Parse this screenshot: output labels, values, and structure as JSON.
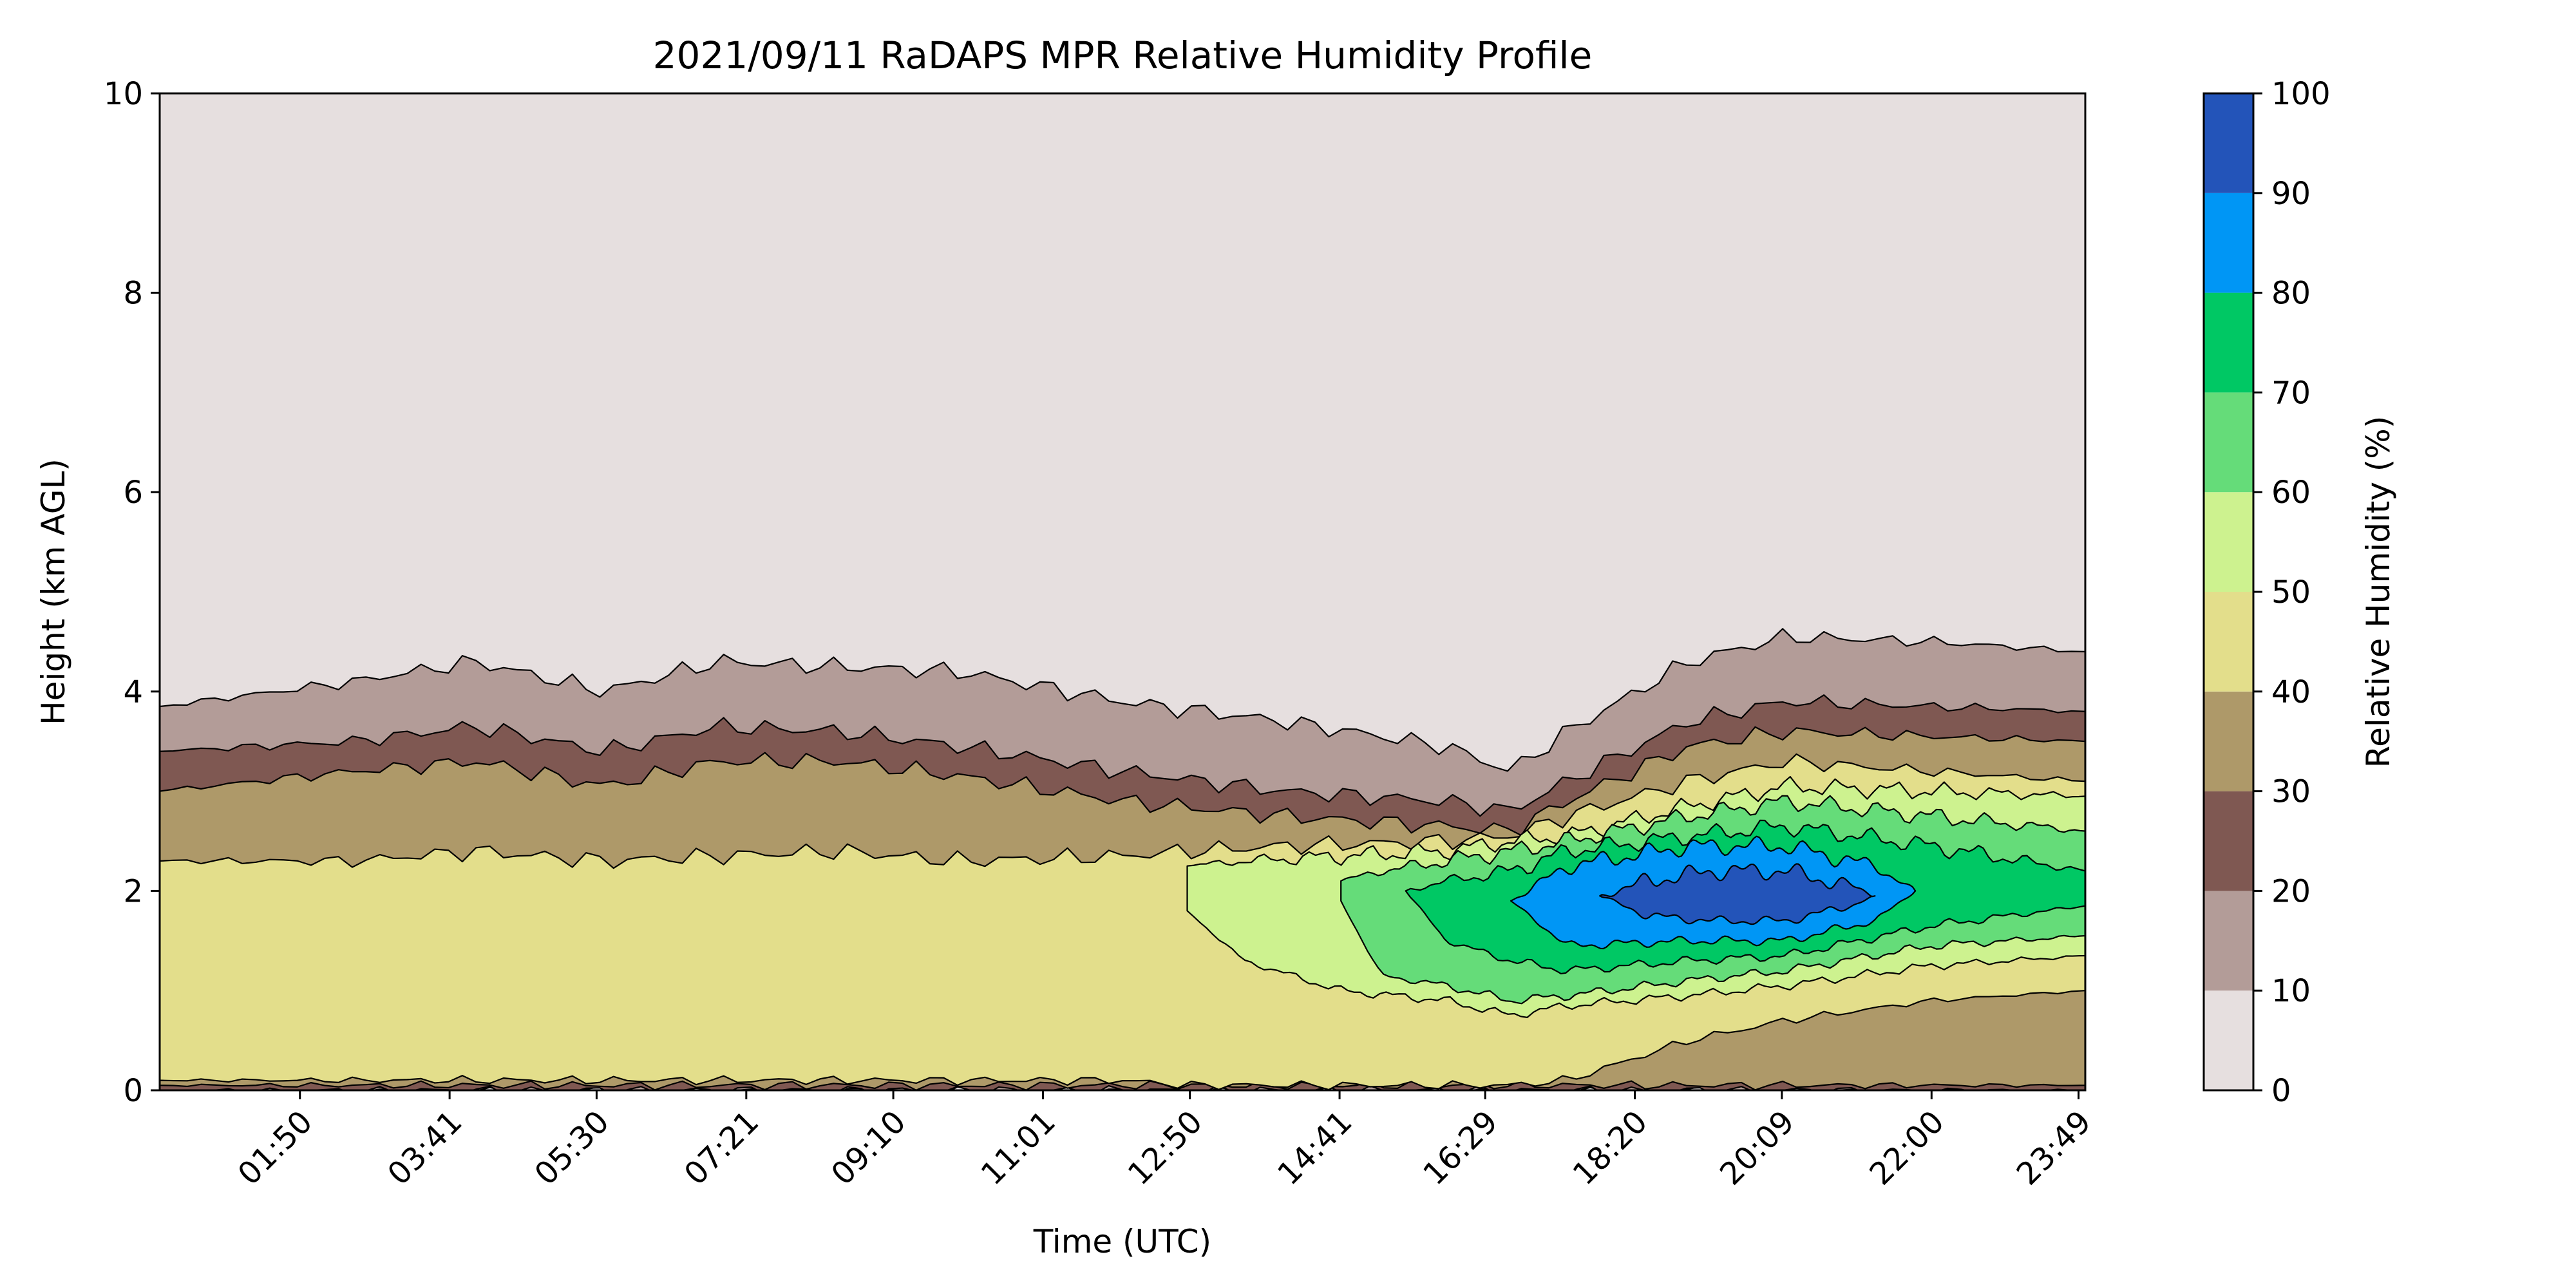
{
  "chart_data": {
    "type": "heatmap",
    "subtype": "filled-contour",
    "title": "2021/09/11 RaDAPS MPR Relative Humidity Profile",
    "xlabel": "Time (UTC)",
    "ylabel": "Height (km AGL)",
    "x_tick_labels": [
      "01:50",
      "03:41",
      "05:30",
      "07:21",
      "09:10",
      "11:01",
      "12:50",
      "14:41",
      "16:29",
      "18:20",
      "20:09",
      "22:00",
      "23:49"
    ],
    "x_tick_hours": [
      1.833,
      3.683,
      5.5,
      7.35,
      9.167,
      11.017,
      12.833,
      14.683,
      16.483,
      18.333,
      20.15,
      22.0,
      23.817
    ],
    "x_range_hours": [
      0.1,
      23.9
    ],
    "ylim": [
      0,
      10
    ],
    "y_ticks": [
      0,
      2,
      4,
      6,
      8,
      10
    ],
    "colorbar": {
      "label": "Relative Humidity (%)",
      "levels": [
        0,
        10,
        20,
        30,
        40,
        50,
        60,
        70,
        80,
        90,
        100
      ],
      "colors": [
        "#e6dfdf",
        "#b39c98",
        "#7f5852",
        "#ae9969",
        "#e3de8b",
        "#cdf28f",
        "#65dc79",
        "#00c864",
        "#0096f5",
        "#2354b9"
      ]
    },
    "contour_bands": [
      {
        "rh_min": 0,
        "rh_max": 10,
        "lower_km": [
          0,
          0
        ],
        "upper_km": [
          10,
          10
        ]
      },
      {
        "rh_min": 10,
        "rh_max": 20,
        "time_hours": [
          0.1,
          2.5,
          4.0,
          5.6,
          7.0,
          8.5,
          10.0,
          12.0,
          14.0,
          16.0,
          16.8,
          17.5,
          19.0,
          20.2,
          22.0,
          23.9
        ],
        "lower_km": [
          0,
          0,
          0,
          0,
          0,
          0,
          0,
          0,
          0,
          0,
          0,
          0,
          0,
          0,
          0,
          0
        ],
        "upper_km": [
          3.85,
          4.1,
          4.3,
          4.0,
          4.3,
          4.25,
          4.2,
          3.9,
          3.7,
          3.45,
          3.2,
          3.6,
          4.3,
          4.55,
          4.5,
          4.4
        ]
      },
      {
        "rh_min": 20,
        "rh_max": 30,
        "time_hours": [
          0.1,
          2.5,
          4.0,
          5.6,
          7.0,
          8.5,
          10.0,
          12.0,
          14.0,
          16.0,
          16.8,
          17.5,
          19.0,
          20.2,
          22.0,
          23.9
        ],
        "lower_km": [
          0,
          0,
          0,
          0,
          0,
          0,
          0,
          0,
          0,
          0,
          0,
          0,
          0,
          0,
          0,
          0
        ],
        "upper_km": [
          3.4,
          3.5,
          3.65,
          3.4,
          3.65,
          3.6,
          3.45,
          3.2,
          3.0,
          2.9,
          2.8,
          3.1,
          3.7,
          3.9,
          3.85,
          3.8
        ]
      },
      {
        "rh_min": 30,
        "rh_max": 40,
        "time_hours": [
          0.1,
          2.5,
          4.0,
          5.6,
          7.0,
          8.5,
          10.0,
          12.0,
          14.0,
          16.0,
          16.8,
          17.5,
          19.0,
          20.2,
          22.0,
          23.9
        ],
        "lower_km": [
          0.05,
          0.05,
          0.05,
          0.05,
          0.05,
          0.05,
          0.05,
          0.05,
          0.05,
          0.05,
          0.05,
          0.05,
          0.05,
          0.05,
          0.05,
          0.05
        ],
        "upper_km": [
          3.0,
          3.2,
          3.3,
          3.05,
          3.3,
          3.3,
          3.15,
          2.9,
          2.75,
          2.65,
          2.6,
          2.9,
          3.45,
          3.6,
          3.55,
          3.5
        ]
      },
      {
        "rh_min": 40,
        "rh_max": 50,
        "time_hours": [
          0.1,
          2.5,
          4.0,
          5.6,
          7.0,
          8.5,
          10.0,
          12.0,
          12.8,
          14.0,
          16.0,
          16.8,
          17.5,
          19.0,
          20.2,
          22.0,
          23.9
        ],
        "lower_km": [
          0.1,
          0.1,
          0.1,
          0.1,
          0.1,
          0.1,
          0.1,
          0.1,
          0.05,
          0.05,
          0.05,
          0.05,
          0.1,
          0.5,
          0.7,
          0.9,
          1.0
        ],
        "upper_km": [
          2.3,
          2.3,
          2.4,
          2.3,
          2.35,
          2.4,
          2.3,
          2.35,
          2.4,
          2.45,
          2.5,
          2.55,
          2.75,
          3.1,
          3.3,
          3.2,
          3.1
        ]
      },
      {
        "rh_min": 50,
        "rh_max": 60,
        "time_hours": [
          12.8,
          13.5,
          14.7,
          16.0,
          16.8,
          17.5,
          19.0,
          20.2,
          22.0,
          23.9
        ],
        "lower_km": [
          1.8,
          1.3,
          1.0,
          0.9,
          0.75,
          0.85,
          0.95,
          1.05,
          1.25,
          1.35
        ],
        "upper_km": [
          2.25,
          2.3,
          2.35,
          2.4,
          2.5,
          2.55,
          2.85,
          3.05,
          3.0,
          2.95
        ]
      },
      {
        "rh_min": 60,
        "rh_max": 70,
        "time_hours": [
          14.7,
          15.2,
          16.0,
          16.8,
          17.5,
          19.0,
          20.2,
          22.0,
          23.9
        ],
        "lower_km": [
          1.9,
          1.15,
          1.05,
          0.9,
          0.95,
          1.1,
          1.2,
          1.45,
          1.55
        ],
        "upper_km": [
          2.1,
          2.2,
          2.3,
          2.4,
          2.5,
          2.75,
          2.9,
          2.75,
          2.6
        ]
      },
      {
        "rh_min": 70,
        "rh_max": 80,
        "time_hours": [
          15.5,
          16.0,
          16.8,
          17.5,
          19.0,
          20.2,
          22.0,
          23.9
        ],
        "lower_km": [
          2.0,
          1.5,
          1.3,
          1.2,
          1.3,
          1.35,
          1.65,
          1.85
        ],
        "upper_km": [
          2.0,
          2.1,
          2.2,
          2.4,
          2.55,
          2.65,
          2.45,
          2.2
        ]
      },
      {
        "rh_min": 80,
        "rh_max": 90,
        "time_hours": [
          16.8,
          17.5,
          19.0,
          20.2,
          21.3,
          21.8
        ],
        "lower_km": [
          1.9,
          1.45,
          1.5,
          1.5,
          1.7,
          2.0
        ],
        "upper_km": [
          1.9,
          2.25,
          2.45,
          2.45,
          2.25,
          2.0
        ]
      },
      {
        "rh_min": 90,
        "rh_max": 100,
        "time_hours": [
          17.9,
          18.5,
          19.3,
          20.2,
          21.0,
          21.3
        ],
        "lower_km": [
          1.95,
          1.75,
          1.7,
          1.7,
          1.85,
          1.95
        ],
        "upper_km": [
          1.95,
          2.1,
          2.2,
          2.2,
          2.05,
          1.95
        ]
      }
    ]
  }
}
